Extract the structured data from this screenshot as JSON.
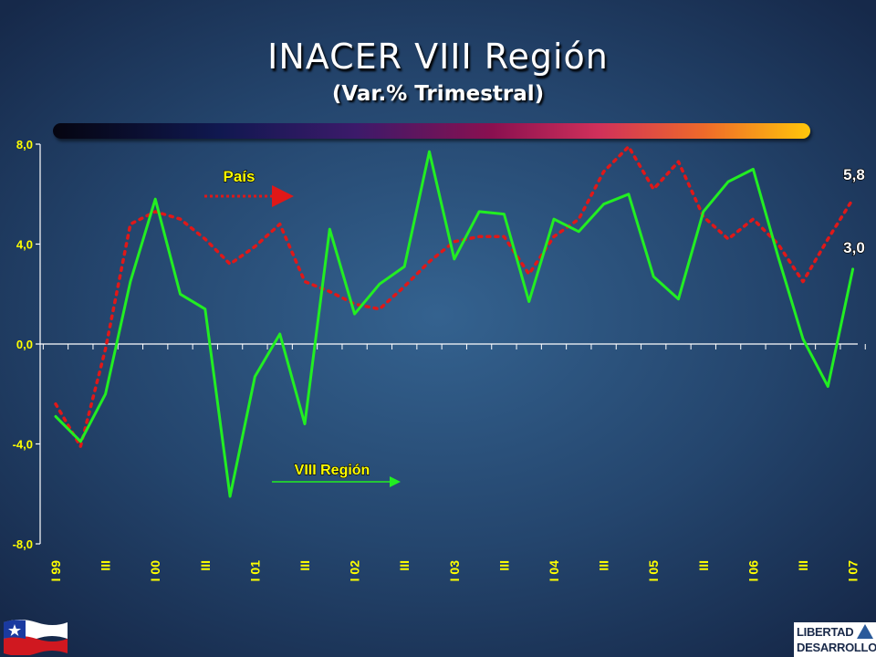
{
  "title": "INACER VIII Región",
  "subtitle": "(Var.% Trimestral)",
  "logo": {
    "line1": "LIBERTAD",
    "line2": "DESARROLLO"
  },
  "colors": {
    "region": "#22ee22",
    "pais": "#e01818",
    "axis_text": "#ffff00",
    "gridline": "#ffffff"
  },
  "chart_data": {
    "type": "line",
    "title": "INACER VIII Región",
    "subtitle": "(Var.% Trimestral)",
    "ylim": [
      -8,
      8
    ],
    "yticks": [
      "8,0",
      "4,0",
      "0,0",
      "-4,0",
      "-8,0"
    ],
    "ytick_values": [
      8,
      4,
      0,
      -4,
      -8
    ],
    "xtick_labels": [
      "I 99",
      "III",
      "I 00",
      "III",
      "I 01",
      "III",
      "I 02",
      "III",
      "I 03",
      "III",
      "I 04",
      "III",
      "I 05",
      "III",
      "I 06",
      "III",
      "I 07"
    ],
    "x": [
      "I 99",
      "II 99",
      "III 99",
      "IV 99",
      "I 00",
      "II 00",
      "III 00",
      "IV 00",
      "I 01",
      "II 01",
      "III 01",
      "IV 01",
      "I 02",
      "II 02",
      "III 02",
      "IV 02",
      "I 03",
      "II 03",
      "III 03",
      "IV 03",
      "I 04",
      "II 04",
      "III 04",
      "IV 04",
      "I 05",
      "II 05",
      "III 05",
      "IV 05",
      "I 06",
      "II 06",
      "III 06",
      "IV 06",
      "I 07"
    ],
    "series": [
      {
        "name": "VIII Región",
        "style": "solid",
        "values": [
          -2.9,
          -3.9,
          -2.0,
          2.5,
          5.8,
          2.0,
          1.4,
          -6.1,
          -1.3,
          0.4,
          -3.2,
          4.6,
          1.2,
          2.4,
          3.1,
          7.7,
          3.4,
          5.3,
          5.2,
          1.7,
          5.0,
          4.5,
          5.6,
          6.0,
          2.7,
          1.8,
          5.3,
          6.5,
          7.0,
          3.5,
          0.2,
          -1.7,
          3.0
        ]
      },
      {
        "name": "País",
        "style": "dotted",
        "values": [
          -2.4,
          -4.1,
          -0.2,
          4.8,
          5.3,
          5.0,
          4.2,
          3.2,
          3.9,
          4.8,
          2.5,
          2.1,
          1.6,
          1.4,
          2.3,
          3.3,
          4.1,
          4.3,
          4.3,
          2.8,
          4.3,
          5.0,
          6.9,
          7.9,
          6.2,
          7.3,
          5.1,
          4.2,
          5.0,
          4.0,
          2.5,
          4.2,
          5.8
        ]
      }
    ],
    "end_labels": [
      "5,8",
      "3,0"
    ],
    "annotations": [
      "País",
      "VIII Región"
    ]
  }
}
